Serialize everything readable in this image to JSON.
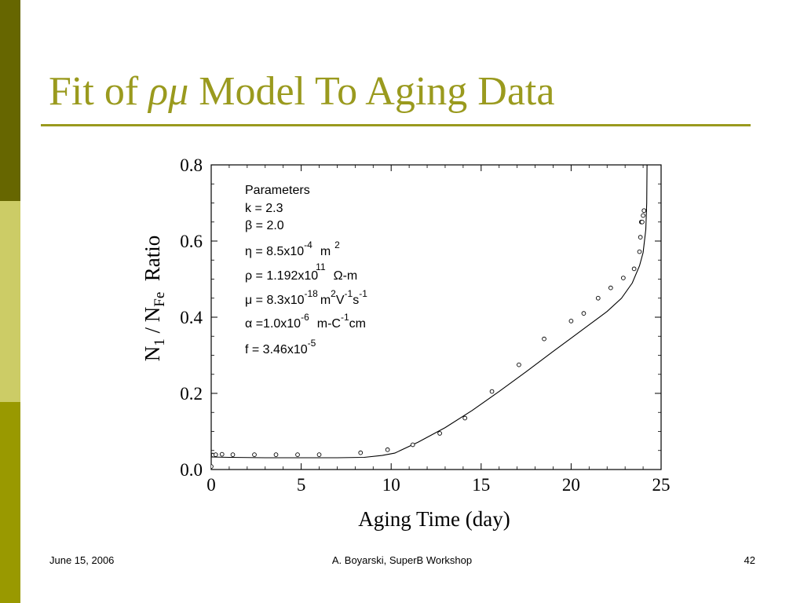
{
  "colors": {
    "title": "#9a9a1e",
    "rule": "#9a9a1e",
    "sidebar": [
      "#666600",
      "#cccc66",
      "#999900"
    ]
  },
  "slide": {
    "title_prefix": "Fit of ",
    "title_greek": "ρμ",
    "title_suffix": " Model To Aging Data",
    "footer_date": "June 15, 2006",
    "footer_center": "A. Boyarski,  SuperB Workshop",
    "footer_page": "42"
  },
  "params": {
    "heading": "Parameters",
    "k": "k = 2.3",
    "beta": "β = 2.0",
    "eta": "η = 8.5x10",
    "eta_exp": "-4",
    "eta_unit": "m",
    "eta_unit_exp": "2",
    "rho": "ρ = 1.192x10",
    "rho_exp": "11",
    "rho_unit": "Ω-m",
    "mu": "μ = 8.3x10",
    "mu_exp": "-18",
    "mu_unit_m": "m",
    "mu_unit_m_exp": "2",
    "mu_unit_V": "V",
    "mu_unit_V_exp": "-1",
    "mu_unit_s": "s",
    "mu_unit_s_exp": "-1",
    "alpha": "α =1.0x10",
    "alpha_exp": "-6",
    "alpha_unit": "m-C",
    "alpha_unit_exp": "-1",
    "alpha_unit_end": "cm",
    "f": "f = 3.46x10",
    "f_exp": "-5"
  },
  "chart_data": {
    "type": "scatter",
    "title": "",
    "xlabel": "Aging Time (day)",
    "ylabel_main": "N",
    "ylabel_sub1": "1",
    "ylabel_mid": " / N",
    "ylabel_sub2": "Fe",
    "ylabel_end": "  Ratio",
    "xlim": [
      0,
      25
    ],
    "ylim": [
      0,
      0.8
    ],
    "x_ticks": [
      0,
      5,
      10,
      15,
      20,
      25
    ],
    "y_ticks": [
      0,
      0.2,
      0.4,
      0.6,
      0.8
    ],
    "x_tick_labels": [
      "0",
      "5",
      "10",
      "15",
      "20",
      "25"
    ],
    "y_tick_labels": [
      "0.0",
      "0.2",
      "0.4",
      "0.6",
      "0.8"
    ],
    "grid": false,
    "series": [
      {
        "kind": "points",
        "x": [
          0.0,
          0.05,
          0.12,
          0.25,
          0.6,
          1.2,
          2.4,
          3.6,
          4.8,
          6.0,
          8.3,
          9.8,
          11.2,
          12.7,
          14.1,
          15.6,
          17.1,
          18.5,
          20.0,
          20.7,
          21.5,
          22.2,
          22.9,
          23.5,
          23.8,
          23.85,
          23.9,
          23.95,
          24.0,
          24.05
        ],
        "y": [
          0.008,
          0.038,
          0.038,
          0.039,
          0.04,
          0.039,
          0.039,
          0.039,
          0.039,
          0.039,
          0.044,
          0.052,
          0.065,
          0.095,
          0.135,
          0.205,
          0.275,
          0.343,
          0.39,
          0.41,
          0.45,
          0.477,
          0.503,
          0.527,
          0.572,
          0.61,
          0.65,
          0.65,
          0.667,
          0.68
        ]
      },
      {
        "kind": "line",
        "x": [
          0.0,
          1,
          3,
          5,
          7,
          8.5,
          9.5,
          10.2,
          11.5,
          13,
          14.5,
          16,
          17.5,
          19,
          20,
          21,
          22,
          22.8,
          23.4,
          23.8,
          24.0,
          24.15,
          24.2,
          24.22
        ],
        "y": [
          0.033,
          0.032,
          0.031,
          0.031,
          0.031,
          0.032,
          0.037,
          0.043,
          0.072,
          0.11,
          0.155,
          0.205,
          0.257,
          0.31,
          0.345,
          0.38,
          0.415,
          0.45,
          0.49,
          0.535,
          0.57,
          0.63,
          0.7,
          0.8
        ]
      }
    ]
  }
}
